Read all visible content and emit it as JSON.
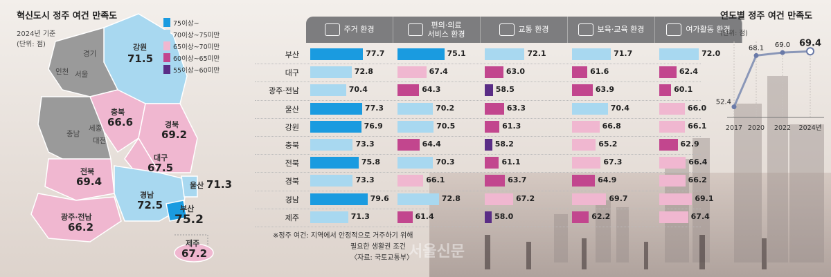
{
  "map": {
    "title": "혁신도시 정주 여건 만족도",
    "base_year": "2024년 기준",
    "unit": "(단위: 점)",
    "legend": [
      {
        "label": "75이상~",
        "color": "#1a9be0"
      },
      {
        "label": "70이상~75미만",
        "color": "#a8d8f0"
      },
      {
        "label": "65이상~70미만",
        "color": "#f0b7d0"
      },
      {
        "label": "60이상~65미만",
        "color": "#c2468e"
      },
      {
        "label": "55이상~60미만",
        "color": "#5a2d86"
      }
    ],
    "regions": [
      {
        "name": "강원",
        "value": "71.5"
      },
      {
        "name": "충북",
        "value": "66.6"
      },
      {
        "name": "경북",
        "value": "69.2"
      },
      {
        "name": "대구",
        "value": "67.5"
      },
      {
        "name": "전북",
        "value": "69.4"
      },
      {
        "name": "경남",
        "value": "72.5"
      },
      {
        "name": "울산",
        "value": "71.3"
      },
      {
        "name": "부산",
        "value": "75.2"
      },
      {
        "name": "광주·전남",
        "value": "66.2"
      },
      {
        "name": "제주",
        "value": "67.2"
      }
    ],
    "cities": [
      "경기",
      "인천",
      "서울",
      "충남",
      "세종",
      "대전"
    ]
  },
  "chart_data": [
    {
      "type": "bar",
      "categories": [
        "부산",
        "대구",
        "광주·전남",
        "울산",
        "강원",
        "충북",
        "전북",
        "경북",
        "경남",
        "제주"
      ],
      "series": [
        {
          "name": "주거 환경",
          "values": [
            77.7,
            72.8,
            70.4,
            77.3,
            76.9,
            73.3,
            75.8,
            73.3,
            79.6,
            71.3
          ]
        },
        {
          "name": "편의·의료 서비스 환경",
          "values": [
            75.1,
            67.4,
            64.3,
            70.2,
            70.5,
            64.4,
            70.3,
            66.1,
            72.8,
            61.4
          ]
        },
        {
          "name": "교통 환경",
          "values": [
            72.1,
            63.0,
            58.5,
            63.3,
            61.3,
            58.2,
            61.1,
            63.7,
            67.2,
            58.0
          ]
        },
        {
          "name": "보육·교육 환경",
          "values": [
            71.7,
            61.6,
            63.9,
            70.4,
            66.8,
            65.2,
            67.3,
            64.9,
            69.7,
            62.2
          ]
        },
        {
          "name": "여가활동 환경",
          "values": [
            72.0,
            62.4,
            60.1,
            66.0,
            66.1,
            62.9,
            66.4,
            66.2,
            69.1,
            67.4
          ]
        }
      ],
      "value_labels": [
        [
          "77.7",
          "72.8",
          "70.4",
          "77.3",
          "76.9",
          "73.3",
          "75.8",
          "73.3",
          "79.6",
          "71.3"
        ],
        [
          "75.1",
          "67.4",
          "64.3",
          "70.2",
          "70.5",
          "64.4",
          "70.3",
          "66.1",
          "72.8",
          "61.4"
        ],
        [
          "72.1",
          "63.0",
          "58.5",
          "63.3",
          "61.3",
          "58.2",
          "61.1",
          "63.7",
          "67.2",
          "58.0"
        ],
        [
          "71.7",
          "61.6",
          "63.9",
          "70.4",
          "66.8",
          "65.2",
          "67.3",
          "64.9",
          "69.7",
          "62.2"
        ],
        [
          "72.0",
          "62.4",
          "60.1",
          "66.0",
          "66.1",
          "62.9",
          "66.4",
          "66.2",
          "69.1",
          "67.4"
        ]
      ],
      "headers": [
        {
          "lines": [
            "주거 환경"
          ],
          "icon": "house-icon"
        },
        {
          "lines": [
            "편의·의료",
            "서비스 환경"
          ],
          "icon": "medical-kit-icon"
        },
        {
          "lines": [
            "교통 환경"
          ],
          "icon": "car-icon"
        },
        {
          "lines": [
            "보육·교육 환경"
          ],
          "icon": "books-icon"
        },
        {
          "lines": [
            "여가활동 환경"
          ],
          "icon": "stage-icon"
        }
      ]
    },
    {
      "type": "line",
      "title": "연도별 정주 여건 만족도",
      "unit": "(단위: 점)",
      "x": [
        "2017",
        "2020",
        "2022",
        "2024년"
      ],
      "values": [
        52.4,
        68.1,
        69.0,
        69.4
      ],
      "value_labels": [
        "52.4",
        "68.1",
        "69.0",
        "69.4"
      ]
    }
  ],
  "note": {
    "line1": "※정주 여건: 지역에서 안정적으로 거주하기 위해",
    "line2": "필요한 생활권 조건",
    "source": "〈자료: 국토교통부〉"
  },
  "watermark": "서울신문"
}
